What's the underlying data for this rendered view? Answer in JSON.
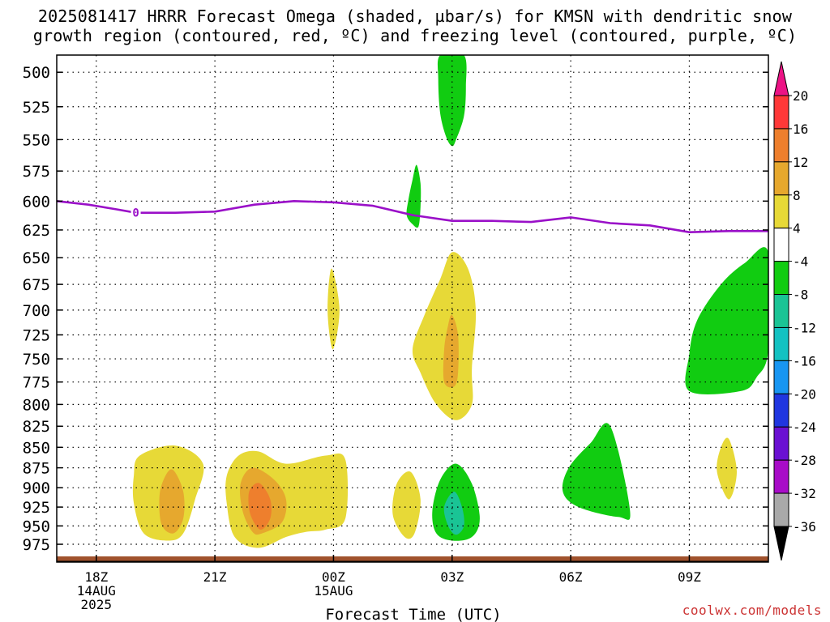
{
  "title": {
    "line1": "2025081417 HRRR Forecast Omega (shaded, µbar/s) for KMSN with dendritic snow",
    "line2": "growth region (contoured, red, ºC) and freezing level (contoured, purple, ºC)"
  },
  "credit": "coolwx.com/models",
  "colors": {
    "freezing_level": "#9a10c8",
    "ground": "#a0522d",
    "frame": "#000000"
  },
  "chart_data": {
    "type": "heatmap",
    "xlabel": "Forecast Time (UTC)",
    "ylabel": "",
    "x_range_hours_utc_from_18Z_14AUG": [
      -1,
      17
    ],
    "y_range_hPa": [
      488,
      993
    ],
    "y_scale": "log-pressure (inverted)",
    "grid": "dotted",
    "x_ticks": [
      {
        "hour": 0,
        "lines": [
          "18Z",
          "14AUG",
          "2025"
        ]
      },
      {
        "hour": 3,
        "lines": [
          "21Z"
        ]
      },
      {
        "hour": 6,
        "lines": [
          "00Z",
          "15AUG"
        ]
      },
      {
        "hour": 9,
        "lines": [
          "03Z"
        ]
      },
      {
        "hour": 12,
        "lines": [
          "06Z"
        ]
      },
      {
        "hour": 15,
        "lines": [
          "09Z"
        ]
      }
    ],
    "y_ticks": [
      500,
      525,
      550,
      575,
      600,
      625,
      650,
      675,
      700,
      725,
      750,
      775,
      800,
      825,
      850,
      875,
      900,
      925,
      950,
      975
    ],
    "colorbar": {
      "labels": [
        "20",
        "16",
        "12",
        "8",
        "4",
        "-4",
        "-8",
        "-12",
        "-16",
        "-20",
        "-24",
        "-28",
        "-32",
        "-36"
      ],
      "bins": [
        {
          "from": 16,
          "to": 20,
          "color": "#ff3838"
        },
        {
          "from": 12,
          "to": 16,
          "color": "#ee7f2d"
        },
        {
          "from": 8,
          "to": 12,
          "color": "#e6a82e"
        },
        {
          "from": 4,
          "to": 8,
          "color": "#e7d937"
        },
        {
          "from": -4,
          "to": 4,
          "color": "#ffffff"
        },
        {
          "from": -8,
          "to": -4,
          "color": "#11cc11"
        },
        {
          "from": -12,
          "to": -8,
          "color": "#1ac495"
        },
        {
          "from": -16,
          "to": -12,
          "color": "#13c2c2"
        },
        {
          "from": -20,
          "to": -16,
          "color": "#1896f2"
        },
        {
          "from": -24,
          "to": -20,
          "color": "#2036e0"
        },
        {
          "from": -28,
          "to": -24,
          "color": "#6a10d2"
        },
        {
          "from": -32,
          "to": -28,
          "color": "#a80cc8"
        },
        {
          "from": -36,
          "to": -32,
          "color": "#a9a9a9"
        }
      ],
      "over_color": "#ec1385",
      "under_color": "#000000"
    },
    "freezing_level": {
      "label": "0",
      "label_hour": 1.0,
      "points": [
        {
          "hour": -1.0,
          "p": 600
        },
        {
          "hour": -0.2,
          "p": 603
        },
        {
          "hour": 0.5,
          "p": 607
        },
        {
          "hour": 1.0,
          "p": 610
        },
        {
          "hour": 2.0,
          "p": 610
        },
        {
          "hour": 3.0,
          "p": 609
        },
        {
          "hour": 4.0,
          "p": 603
        },
        {
          "hour": 5.0,
          "p": 600
        },
        {
          "hour": 6.0,
          "p": 601
        },
        {
          "hour": 7.0,
          "p": 604
        },
        {
          "hour": 8.0,
          "p": 612
        },
        {
          "hour": 9.0,
          "p": 617
        },
        {
          "hour": 10.0,
          "p": 617
        },
        {
          "hour": 11.0,
          "p": 618
        },
        {
          "hour": 12.0,
          "p": 614
        },
        {
          "hour": 13.0,
          "p": 619
        },
        {
          "hour": 14.0,
          "p": 621
        },
        {
          "hour": 15.0,
          "p": 627
        },
        {
          "hour": 16.0,
          "p": 626
        },
        {
          "hour": 17.0,
          "p": 626
        }
      ]
    },
    "omega_regions": [
      {
        "name": "green-upper-03z",
        "value_bin": "-8 to -4",
        "color": "#11cc11",
        "points": [
          [
            8.7,
            488
          ],
          [
            9.3,
            488
          ],
          [
            9.35,
            510
          ],
          [
            9.3,
            532
          ],
          [
            9.1,
            550
          ],
          [
            9.0,
            555
          ],
          [
            8.85,
            548
          ],
          [
            8.7,
            530
          ],
          [
            8.65,
            505
          ]
        ]
      },
      {
        "name": "green-small-02z",
        "value_bin": "-8 to -4",
        "color": "#11cc11",
        "points": [
          [
            8.1,
            570
          ],
          [
            8.2,
            585
          ],
          [
            8.2,
            605
          ],
          [
            8.15,
            622
          ],
          [
            8.0,
            620
          ],
          [
            7.85,
            612
          ],
          [
            7.9,
            598
          ],
          [
            8.0,
            582
          ]
        ]
      },
      {
        "name": "yellow-01z-700",
        "value_bin": "4 to 8",
        "color": "#e7d937",
        "points": [
          [
            5.95,
            660
          ],
          [
            6.15,
            700
          ],
          [
            5.98,
            740
          ],
          [
            5.85,
            700
          ]
        ]
      },
      {
        "name": "yellow-03z-mid",
        "value_bin": "4 to 8",
        "color": "#e7d937",
        "points": [
          [
            9.0,
            645
          ],
          [
            9.4,
            660
          ],
          [
            9.6,
            700
          ],
          [
            9.5,
            760
          ],
          [
            9.5,
            800
          ],
          [
            9.1,
            818
          ],
          [
            8.6,
            800
          ],
          [
            8.2,
            765
          ],
          [
            8.0,
            740
          ],
          [
            8.3,
            705
          ],
          [
            8.7,
            670
          ]
        ]
      },
      {
        "name": "orange-03z-mid",
        "value_bin": "8 to 12",
        "color": "#e6a82e",
        "points": [
          [
            9.0,
            705
          ],
          [
            9.15,
            725
          ],
          [
            9.15,
            765
          ],
          [
            9.05,
            780
          ],
          [
            8.8,
            775
          ],
          [
            8.8,
            740
          ],
          [
            8.9,
            715
          ]
        ]
      },
      {
        "name": "green-right-upper",
        "value_bin": "-8 to -4",
        "color": "#11cc11",
        "points": [
          [
            17.0,
            645
          ],
          [
            17.0,
            740
          ],
          [
            16.7,
            770
          ],
          [
            16.3,
            785
          ],
          [
            15.0,
            785
          ],
          [
            15.0,
            745
          ],
          [
            15.2,
            710
          ],
          [
            15.8,
            675
          ],
          [
            16.4,
            655
          ]
        ]
      },
      {
        "name": "green-06z-low",
        "value_bin": "-8 to -4",
        "color": "#11cc11",
        "points": [
          [
            13.0,
            825
          ],
          [
            13.5,
            930
          ],
          [
            13.2,
            938
          ],
          [
            12.2,
            925
          ],
          [
            11.8,
            905
          ],
          [
            11.95,
            875
          ],
          [
            12.5,
            845
          ]
        ]
      },
      {
        "name": "yellow-09z-low",
        "value_bin": "4 to 8",
        "color": "#e7d937",
        "points": [
          [
            16.0,
            840
          ],
          [
            16.2,
            880
          ],
          [
            16.0,
            915
          ],
          [
            15.7,
            880
          ],
          [
            15.8,
            850
          ]
        ]
      },
      {
        "name": "yellow-1930z",
        "value_bin": "4 to 8",
        "color": "#e7d937",
        "points": [
          [
            1.1,
            860
          ],
          [
            2.0,
            848
          ],
          [
            2.7,
            870
          ],
          [
            2.5,
            915
          ],
          [
            2.2,
            960
          ],
          [
            1.8,
            970
          ],
          [
            1.2,
            960
          ],
          [
            0.95,
            920
          ],
          [
            0.95,
            885
          ]
        ]
      },
      {
        "name": "orange-1930z",
        "value_bin": "8 to 12",
        "color": "#e6a82e",
        "points": [
          [
            1.95,
            878
          ],
          [
            2.2,
            905
          ],
          [
            2.2,
            940
          ],
          [
            1.95,
            960
          ],
          [
            1.65,
            948
          ],
          [
            1.6,
            910
          ],
          [
            1.75,
            885
          ]
        ]
      },
      {
        "name": "yellow-2230z",
        "value_bin": "4 to 8",
        "color": "#e7d937",
        "points": [
          [
            3.6,
            860
          ],
          [
            4.1,
            855
          ],
          [
            4.8,
            870
          ],
          [
            5.8,
            860
          ],
          [
            6.3,
            865
          ],
          [
            6.3,
            940
          ],
          [
            5.8,
            955
          ],
          [
            5.3,
            958
          ],
          [
            4.8,
            965
          ],
          [
            4.1,
            980
          ],
          [
            3.5,
            965
          ],
          [
            3.3,
            920
          ],
          [
            3.3,
            885
          ]
        ]
      },
      {
        "name": "orange-2230z",
        "value_bin": "8 to 12",
        "color": "#e6a82e",
        "points": [
          [
            3.95,
            875
          ],
          [
            4.5,
            890
          ],
          [
            4.8,
            915
          ],
          [
            4.7,
            945
          ],
          [
            4.2,
            960
          ],
          [
            3.95,
            958
          ],
          [
            3.7,
            930
          ],
          [
            3.65,
            895
          ]
        ]
      },
      {
        "name": "deeporange-2230z",
        "value_bin": "12 to 16",
        "color": "#ee7f2d",
        "points": [
          [
            4.15,
            895
          ],
          [
            4.4,
            915
          ],
          [
            4.4,
            940
          ],
          [
            4.15,
            955
          ],
          [
            3.9,
            935
          ],
          [
            3.85,
            910
          ],
          [
            3.95,
            898
          ]
        ]
      },
      {
        "name": "yellow-0130z-low",
        "value_bin": "4 to 8",
        "color": "#e7d937",
        "points": [
          [
            7.95,
            880
          ],
          [
            8.2,
            915
          ],
          [
            8.05,
            960
          ],
          [
            7.8,
            965
          ],
          [
            7.5,
            935
          ],
          [
            7.6,
            895
          ]
        ]
      },
      {
        "name": "green-03z-low",
        "value_bin": "-8 to -4",
        "color": "#11cc11",
        "points": [
          [
            9.1,
            870
          ],
          [
            9.5,
            895
          ],
          [
            9.7,
            940
          ],
          [
            9.5,
            965
          ],
          [
            9.0,
            970
          ],
          [
            8.6,
            960
          ],
          [
            8.5,
            930
          ],
          [
            8.7,
            890
          ]
        ]
      },
      {
        "name": "teal-03z-low",
        "value_bin": "-12 to -8",
        "color": "#1ac495",
        "points": [
          [
            9.05,
            905
          ],
          [
            9.25,
            925
          ],
          [
            9.3,
            950
          ],
          [
            9.1,
            962
          ],
          [
            8.9,
            950
          ],
          [
            8.8,
            925
          ]
        ]
      }
    ]
  }
}
